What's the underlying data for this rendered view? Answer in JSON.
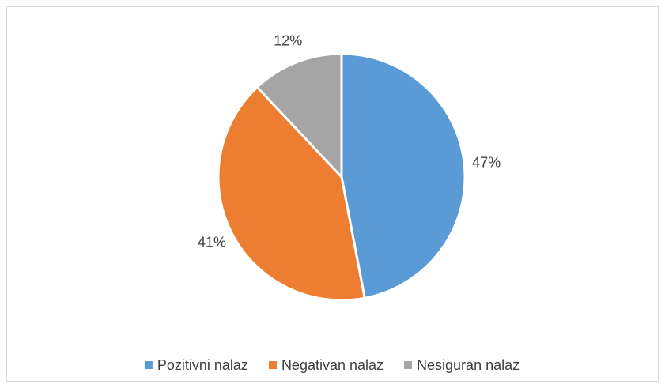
{
  "chart_data": {
    "type": "pie",
    "categories": [
      "Pozitivni nalaz",
      "Negativan nalaz",
      "Nesiguran nalaz"
    ],
    "values": [
      47,
      41,
      12
    ],
    "value_labels": [
      "47%",
      "41%",
      "12%"
    ],
    "colors": [
      "#5b9bd5",
      "#ed7d31",
      "#a5a5a5"
    ],
    "legend": "bottom"
  }
}
